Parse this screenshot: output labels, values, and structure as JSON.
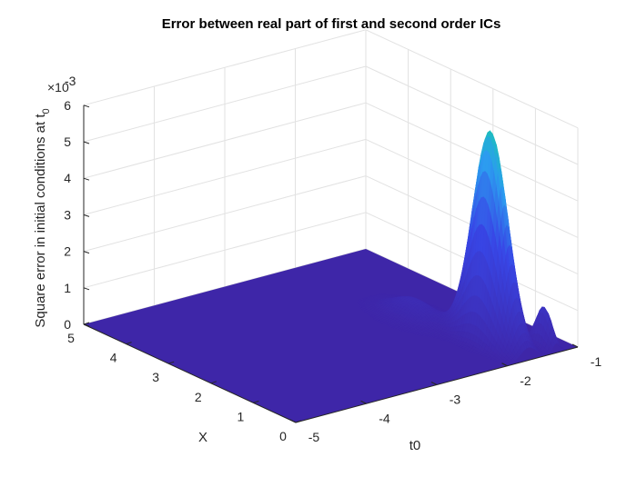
{
  "chart_data": {
    "type": "surface",
    "title": "Error between real part of first and second order ICs",
    "xlabel": "t0",
    "ylabel": "X",
    "zlabel": "Square error in initial conditions at t",
    "zlabel_subscript": "0",
    "z_exponent_label": "×10",
    "z_exponent": "-3",
    "xlim": [
      -5,
      -1
    ],
    "ylim": [
      0,
      5
    ],
    "zlim": [
      0,
      0.006
    ],
    "x_ticks": [
      "-5",
      "-4",
      "-3",
      "-2",
      "-1"
    ],
    "x_tick_values": [
      -5,
      -4,
      -3,
      -2,
      -1
    ],
    "y_ticks": [
      "0",
      "1",
      "2",
      "3",
      "4",
      "5"
    ],
    "y_tick_values": [
      0,
      1,
      2,
      3,
      4,
      5
    ],
    "z_ticks": [
      "0",
      "1",
      "2",
      "3",
      "4",
      "5",
      "6"
    ],
    "z_tick_values": [
      0,
      0.001,
      0.002,
      0.003,
      0.004,
      0.005,
      0.006
    ],
    "grid": true,
    "colormap": "parula",
    "colors": {
      "low": "#3e26a8",
      "mid": "#2c9cf0",
      "high": "#23c2a5",
      "grid": "#e2e2e2",
      "axis": "#262626"
    },
    "peaks": [
      {
        "t0": -1.7,
        "X": 0.9,
        "z": 0.0058,
        "note": "main peak"
      },
      {
        "t0": -1.3,
        "X": 0.3,
        "z": 0.0011
      },
      {
        "t0": -1.9,
        "X": 2.4,
        "z": 0.0005
      }
    ]
  }
}
